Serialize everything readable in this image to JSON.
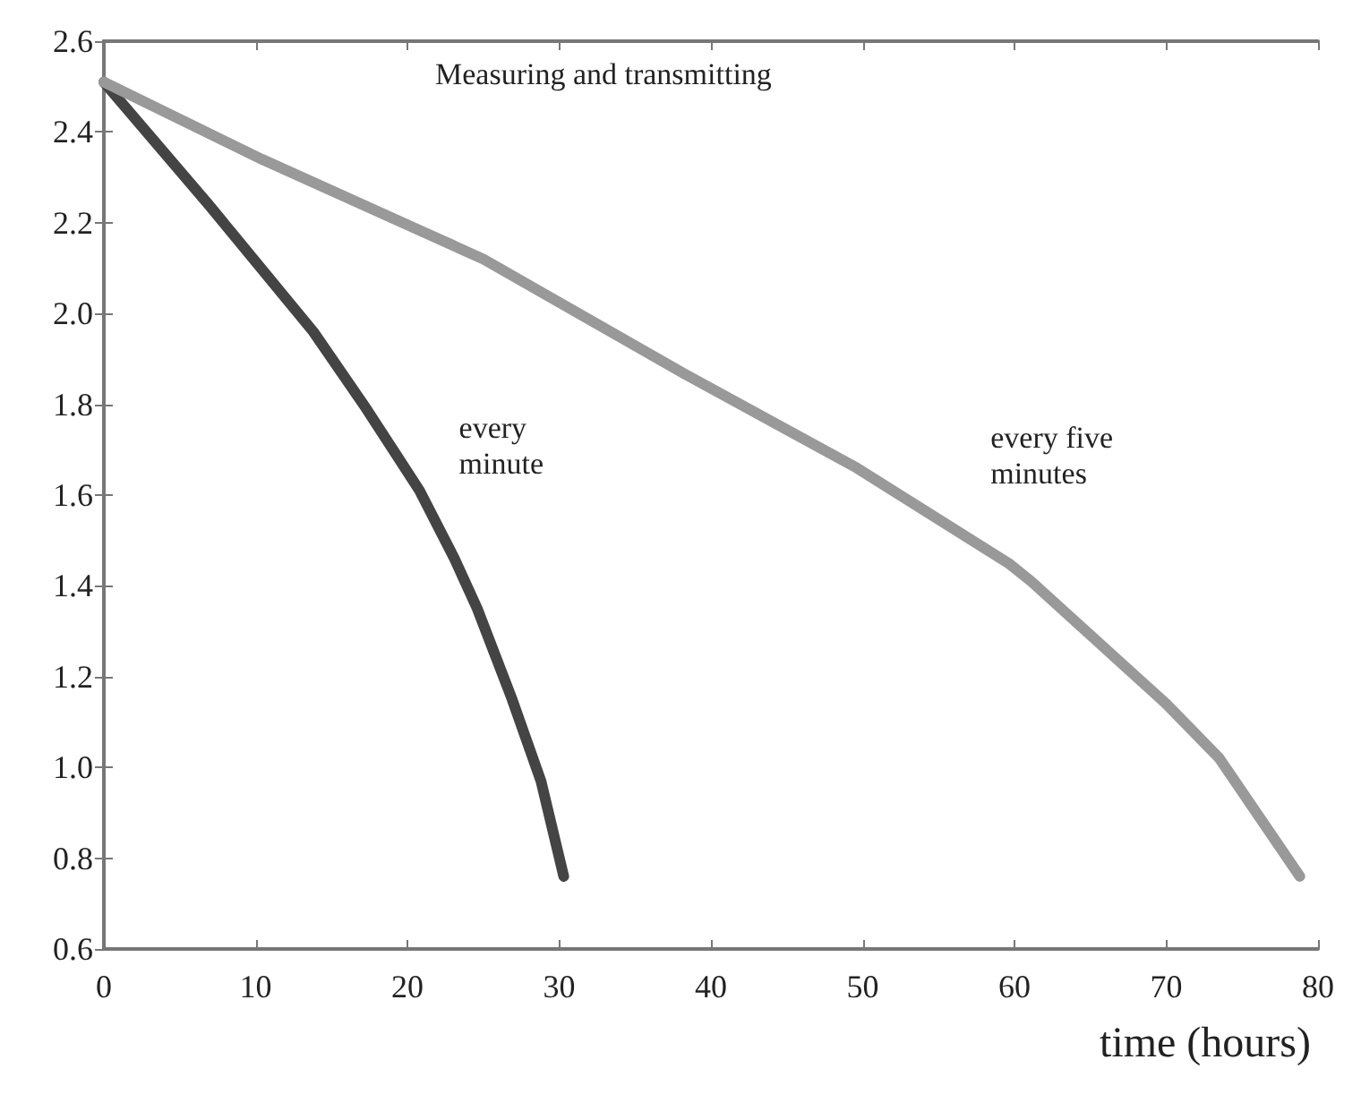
{
  "chart_data": {
    "type": "line",
    "title": "Measuring and transmitting",
    "xlabel": "time (hours)",
    "xlim": [
      0,
      80
    ],
    "xticks": [
      0,
      10,
      20,
      30,
      40,
      50,
      60,
      70,
      80
    ],
    "ylim": [
      0.6,
      2.6
    ],
    "yticks": [
      0.6,
      0.8,
      {
        "value": 1,
        "label": "1.0"
      },
      1.2,
      1.4,
      1.6,
      1.8,
      {
        "value": 2,
        "label": "2.0"
      },
      2.2,
      2.4,
      2.6
    ],
    "grid": false,
    "legend": false,
    "marker": "none",
    "line_style": "solid",
    "series": [
      {
        "name": "every minute",
        "color": "#444444",
        "x": [
          0,
          6.9,
          13.8,
          17.3,
          20.8,
          23.1,
          24.6,
          26.9,
          28.8,
          30.3
        ],
        "values": [
          2.51,
          2.24,
          1.96,
          1.79,
          1.61,
          1.46,
          1.35,
          1.15,
          0.97,
          0.76
        ]
      },
      {
        "name": "every five minutes",
        "color": "#999999",
        "x": [
          0,
          10.4,
          25,
          38.1,
          49.6,
          59.6,
          61.1,
          70,
          73.5,
          78.8
        ],
        "values": [
          2.51,
          2.34,
          2.12,
          1.87,
          1.66,
          1.45,
          1.41,
          1.14,
          1.02,
          0.76
        ]
      }
    ]
  }
}
